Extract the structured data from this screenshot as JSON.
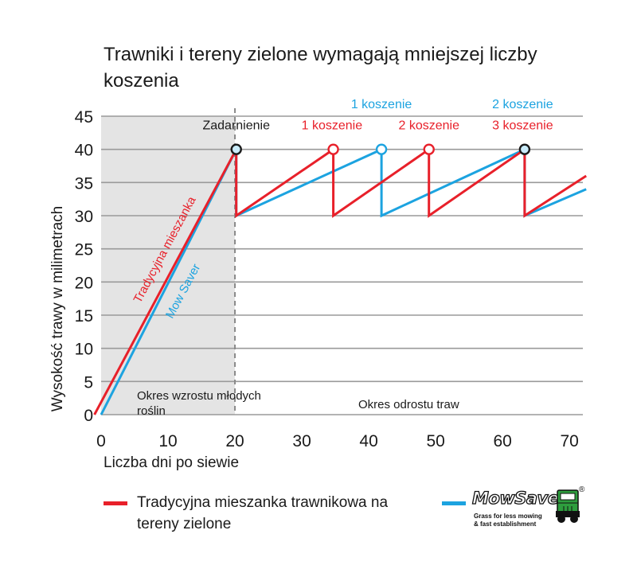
{
  "title": "Trawniki i tereny zielone wymagają mniejszej liczby koszenia",
  "colors": {
    "traditional": "#e8202a",
    "mowsaver": "#1ca3e0",
    "phase1_bg": "#e4e4e4",
    "grid": "#9a9a9a",
    "text": "#1a1a1a",
    "brand_green": "#2e9e3e"
  },
  "legend": {
    "traditional": "Tradycyjna mieszanka trawnikowa na tereny zielone",
    "mowsaver_brand": "MowSaver",
    "mowsaver_tagline_1": "Grass for less mowing",
    "mowsaver_tagline_2": "& fast establishment",
    "registered_mark": "®"
  },
  "chart_data": {
    "type": "line",
    "title": "Trawniki i tereny zielone wymagają mniejszej liczby koszenia",
    "xlabel": "Liczba dni po siewie",
    "ylabel": "Wysokość trawy w milimetrach",
    "xlim": [
      0,
      72
    ],
    "ylim": [
      0,
      45
    ],
    "xticks": [
      0,
      10,
      20,
      30,
      40,
      50,
      60,
      70
    ],
    "yticks": [
      0,
      5,
      10,
      15,
      20,
      25,
      30,
      35,
      40,
      45
    ],
    "grid": true,
    "series": [
      {
        "name": "Tradycyjna mieszanka trawnikowa na tereny zielone",
        "color": "#e8202a",
        "x": [
          -1,
          20.2,
          20.2,
          34.7,
          34.7,
          49.0,
          49.0,
          63.3,
          63.3,
          72.5
        ],
        "y": [
          0,
          40,
          30,
          40,
          30,
          40,
          30,
          40,
          30,
          36
        ]
      },
      {
        "name": "MowSaver",
        "color": "#1ca3e0",
        "x": [
          0,
          20.2,
          20.2,
          41.9,
          41.9,
          63.3,
          63.3,
          72.5
        ],
        "y": [
          0,
          40,
          30,
          40,
          30,
          40,
          30,
          34
        ]
      }
    ],
    "markers": [
      {
        "series": "both",
        "x": 20.2,
        "y": 40
      },
      {
        "series": "traditional",
        "x": 34.7,
        "y": 40
      },
      {
        "series": "mowsaver",
        "x": 41.9,
        "y": 40
      },
      {
        "series": "traditional",
        "x": 49.0,
        "y": 40
      },
      {
        "series": "both",
        "x": 63.3,
        "y": 40
      }
    ],
    "annotations": [
      {
        "text": "Zadarnienie",
        "x": 20.2,
        "y": 43,
        "color": "#1a1a1a"
      },
      {
        "text": "1 koszenie",
        "x": 34.5,
        "y": 43,
        "color": "#e8202a"
      },
      {
        "text": "1 koszenie",
        "x": 41.9,
        "y": 46.2,
        "color": "#1ca3e0"
      },
      {
        "text": "2 koszenie",
        "x": 49.0,
        "y": 43,
        "color": "#e8202a"
      },
      {
        "text": "2 koszenie",
        "x": 63.0,
        "y": 46.2,
        "color": "#1ca3e0"
      },
      {
        "text": "3 koszenie",
        "x": 63.0,
        "y": 43,
        "color": "#e8202a"
      }
    ],
    "series_line_labels": [
      {
        "text": "Tradycyjna mieszanka",
        "color": "#e8202a"
      },
      {
        "text": "Mow Saver",
        "color": "#1ca3e0"
      }
    ],
    "phases": [
      {
        "text": "Okres wzrostu młodych roślin",
        "from": 0,
        "to": 20
      },
      {
        "text": "Okres odrostu traw",
        "from": 20,
        "to": 72
      }
    ],
    "phase_divider_x": 20
  }
}
